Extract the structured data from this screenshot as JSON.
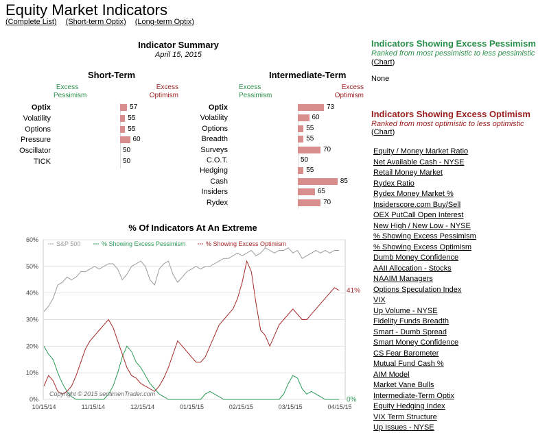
{
  "header": {
    "title": "Equity Market Indicators",
    "links": [
      "(Complete List)",
      "(Short-term Optix)",
      "(Long-term Optix)"
    ]
  },
  "summary": {
    "title": "Indicator Summary",
    "date": "April 15, 2015",
    "short_term": {
      "title": "Short-Term",
      "pess_label": "Excess\nPessimism",
      "opt_label": "Excess\nOptimism",
      "rows": [
        {
          "label": "Optix",
          "value": 57
        },
        {
          "label": "Volatility",
          "value": 55
        },
        {
          "label": "Options",
          "value": 55
        },
        {
          "label": "Pressure",
          "value": 60
        },
        {
          "label": "Oscillator",
          "value": 50
        },
        {
          "label": "TICK",
          "value": 50
        }
      ]
    },
    "intermediate_term": {
      "title": "Intermediate-Term",
      "pess_label": "Excess\nPessimism",
      "opt_label": "Excess\nOptimism",
      "rows": [
        {
          "label": "Optix",
          "value": 73
        },
        {
          "label": "Volatility",
          "value": 60
        },
        {
          "label": "Options",
          "value": 55
        },
        {
          "label": "Breadth",
          "value": 55
        },
        {
          "label": "Surveys",
          "value": 70
        },
        {
          "label": "C.O.T.",
          "value": 50
        },
        {
          "label": "Hedging",
          "value": 55
        },
        {
          "label": "Cash",
          "value": 85
        },
        {
          "label": "Insiders",
          "value": 65
        },
        {
          "label": "Rydex",
          "value": 70
        }
      ]
    }
  },
  "pessimism": {
    "title": "Indicators Showing Excess Pessimism",
    "subtitle": "Ranked from most pessimistic to less pessimistic",
    "chart_link": "Chart",
    "items_text": "None"
  },
  "optimism": {
    "title": "Indicators Showing Excess Optimism",
    "subtitle": "Ranked from most optimistic to less optimistic",
    "chart_link": "Chart",
    "items": [
      "Equity / Money Market Ratio",
      "Net Available Cash  - NYSE",
      "Retail Money Market",
      "Rydex Ratio",
      "Rydex Money Market %",
      "Insiderscore.com Buy/Sell",
      "OEX PutCall Open Interest",
      "New High / New Low - NYSE",
      "% Showing Excess Pessimism",
      "% Showing Excess Optimism",
      "Dumb Money Confidence",
      "AAII Allocation - Stocks",
      "NAAIM Managers",
      "Options Speculation Index",
      "VIX",
      "Up Volume - NYSE",
      "Fidelity Funds Breadth",
      "Smart - Dumb Spread",
      "Smart Money Confidence",
      "CS Fear Barometer",
      "Mutual Fund Cash %",
      "AIM Model",
      "Market Vane Bulls",
      "Intermediate-Term Optix",
      "Equity Hedging Index",
      "VIX Term Structure",
      "Up Issues - NYSE"
    ]
  },
  "chart_data": {
    "type": "line",
    "title": "% Of Indicators At An Extreme",
    "copyright": "Copyright © 2015  sentimenTrader.com",
    "ylim": [
      0,
      60
    ],
    "yticks": [
      "0%",
      "10%",
      "20%",
      "30%",
      "40%",
      "50%",
      "60%"
    ],
    "xticks": [
      "10/15/14",
      "11/15/14",
      "12/15/14",
      "01/15/15",
      "02/15/15",
      "03/15/15",
      "04/15/15"
    ],
    "legend": [
      "S&P 500",
      "% Showing Excess Pessimism",
      "% Showing Excess Optimism"
    ],
    "end_labels": {
      "optimism": "41%",
      "pessimism": "0%"
    },
    "colors": {
      "sp500": "#9a9a9a",
      "pessimism": "#2a9a55",
      "optimism": "#a52828"
    },
    "series": [
      {
        "name": "S&P 500",
        "values": [
          33,
          35,
          38,
          43,
          44,
          46,
          45,
          46,
          48,
          48,
          49,
          50,
          49,
          50,
          51,
          51,
          49,
          45,
          47,
          50,
          51,
          52,
          50,
          45,
          43,
          49,
          51,
          52,
          47,
          44,
          46,
          48,
          49,
          50,
          49,
          50,
          50,
          51,
          52,
          53,
          53,
          54,
          55,
          54,
          55,
          56,
          54,
          55,
          57,
          56,
          55,
          56,
          56,
          57,
          55,
          56,
          53,
          54,
          55,
          56,
          55,
          56,
          55,
          56,
          56
        ]
      },
      {
        "name": "% Showing Excess Pessimism",
        "values": [
          20,
          17,
          15,
          10,
          6,
          3,
          1,
          0,
          0,
          0,
          0,
          0,
          0,
          0,
          2,
          5,
          10,
          16,
          20,
          18,
          14,
          12,
          9,
          6,
          4,
          2,
          1,
          0,
          0,
          0,
          0,
          0,
          0,
          0,
          0,
          2,
          3,
          2,
          1,
          0,
          0,
          0,
          0,
          0,
          0,
          0,
          0,
          0,
          0,
          0,
          0,
          0,
          2,
          6,
          9,
          8,
          4,
          2,
          3,
          2,
          1,
          0,
          0,
          0,
          0
        ]
      },
      {
        "name": "% Showing Excess Optimism",
        "values": [
          5,
          9,
          7,
          3,
          2,
          3,
          5,
          9,
          14,
          19,
          22,
          24,
          26,
          28,
          30,
          27,
          22,
          17,
          12,
          9,
          8,
          6,
          5,
          4,
          3,
          5,
          8,
          12,
          17,
          22,
          20,
          18,
          16,
          14,
          14,
          16,
          20,
          24,
          28,
          30,
          32,
          34,
          38,
          44,
          52,
          48,
          36,
          26,
          24,
          20,
          24,
          28,
          30,
          32,
          34,
          32,
          30,
          30,
          32,
          34,
          36,
          38,
          40,
          42,
          41
        ]
      }
    ]
  }
}
